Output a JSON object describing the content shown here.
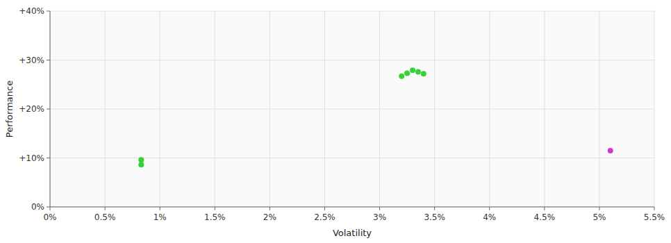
{
  "chart_data": {
    "type": "scatter",
    "xlabel": "Volatility",
    "ylabel": "Performance",
    "xlim": [
      0.0,
      0.055
    ],
    "ylim": [
      0.0,
      0.4
    ],
    "xticks": [
      {
        "value": 0.0,
        "label": "0%"
      },
      {
        "value": 0.005,
        "label": "0.5%"
      },
      {
        "value": 0.01,
        "label": "1%"
      },
      {
        "value": 0.015,
        "label": "1.5%"
      },
      {
        "value": 0.02,
        "label": "2%"
      },
      {
        "value": 0.025,
        "label": "2.5%"
      },
      {
        "value": 0.03,
        "label": "3%"
      },
      {
        "value": 0.035,
        "label": "3.5%"
      },
      {
        "value": 0.04,
        "label": "4%"
      },
      {
        "value": 0.045,
        "label": "4.5%"
      },
      {
        "value": 0.05,
        "label": "5%"
      },
      {
        "value": 0.055,
        "label": "5.5%"
      }
    ],
    "yticks": [
      {
        "value": 0.0,
        "label": "0%"
      },
      {
        "value": 0.1,
        "label": "+10%"
      },
      {
        "value": 0.2,
        "label": "+20%"
      },
      {
        "value": 0.3,
        "label": "+30%"
      },
      {
        "value": 0.4,
        "label": "+40%"
      }
    ],
    "grid": true,
    "series": [
      {
        "color": "#22cc22",
        "x": [
          0.0083,
          0.0083,
          0.032,
          0.0325,
          0.033,
          0.034,
          0.0335
        ],
        "values": [
          0.096,
          0.086,
          0.267,
          0.273,
          0.279,
          0.272,
          0.276
        ]
      },
      {
        "color": "#cc22cc",
        "x": [
          0.051
        ],
        "values": [
          0.115
        ]
      }
    ]
  }
}
